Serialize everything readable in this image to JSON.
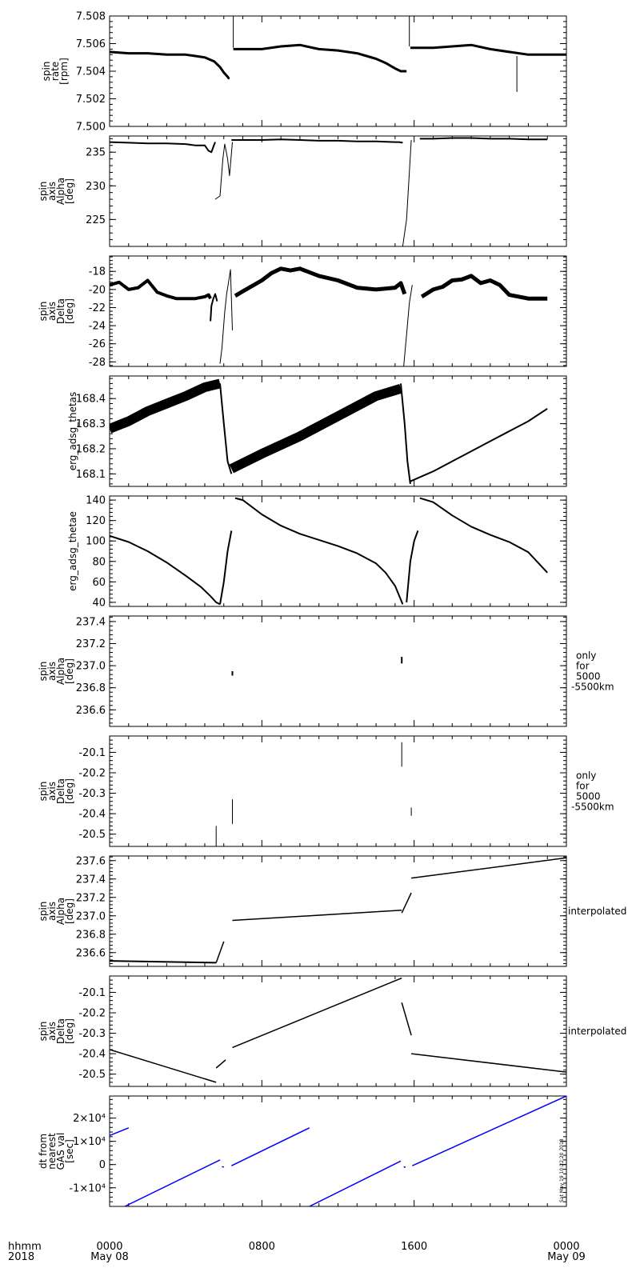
{
  "chart_data": [
    {
      "type": "scatter",
      "ylabel": [
        "spin",
        "rate",
        "[rpm]"
      ],
      "ylim": [
        7.5,
        7.508
      ],
      "yticks": [
        "7.500",
        "7.502",
        "7.504",
        "7.506",
        "7.508"
      ],
      "ytick_values": [
        7.5,
        7.502,
        7.504,
        7.506,
        7.508
      ],
      "series": [
        {
          "x": [
            0,
            1,
            2,
            3,
            4,
            4.5,
            5,
            5.5,
            5.8,
            6.0,
            6.2,
            6.25,
            6.3
          ],
          "y": [
            7.5054,
            7.5053,
            7.5053,
            7.5052,
            7.5052,
            7.5051,
            7.505,
            7.5047,
            7.5043,
            7.5039,
            7.5036,
            7.5035,
            7.5035
          ],
          "width": 3
        },
        {
          "x": [
            6.5,
            6.5
          ],
          "y": [
            7.5057,
            7.5081
          ],
          "width": 1
        },
        {
          "x": [
            6.5,
            8,
            9,
            10,
            11,
            12,
            13,
            13.5,
            14,
            14.5,
            15,
            15.3,
            15.6
          ],
          "y": [
            7.5056,
            7.5056,
            7.5058,
            7.5059,
            7.5056,
            7.5055,
            7.5053,
            7.5051,
            7.5049,
            7.5046,
            7.5042,
            7.504,
            7.504
          ],
          "width": 3
        },
        {
          "x": [
            15.75,
            15.75
          ],
          "y": [
            7.5058,
            7.5081
          ],
          "width": 1
        },
        {
          "x": [
            15.8,
            17,
            18,
            19,
            20,
            21,
            22,
            23,
            24
          ],
          "y": [
            7.5057,
            7.5057,
            7.5058,
            7.5059,
            7.5056,
            7.5054,
            7.5052,
            7.5052,
            7.5052
          ],
          "width": 3
        },
        {
          "x": [
            21.4,
            21.4
          ],
          "y": [
            7.5025,
            7.5051
          ],
          "width": 1
        }
      ]
    },
    {
      "type": "scatter",
      "ylabel": [
        "spin",
        "axis",
        "Alpha",
        "[deg]"
      ],
      "ylim": [
        221,
        237.4
      ],
      "yticks": [
        "225",
        "230",
        "235"
      ],
      "ytick_values": [
        225,
        230,
        235
      ],
      "series": [
        {
          "x": [
            0,
            1,
            2,
            3,
            4,
            4.5,
            5,
            5.2,
            5.35,
            5.45,
            5.55
          ],
          "y": [
            236.5,
            236.4,
            236.3,
            236.3,
            236.2,
            236.0,
            236.0,
            235.2,
            235.0,
            235.8,
            236.5
          ],
          "width": 2
        },
        {
          "x": [
            5.55,
            5.8,
            5.95,
            6.05,
            6.1,
            6.2,
            6.3,
            6.45
          ],
          "y": [
            228,
            228.5,
            234,
            236.2,
            235.5,
            234,
            231.5,
            236.5
          ],
          "width": 1
        },
        {
          "x": [
            6.4,
            8,
            9,
            10,
            11,
            12,
            13,
            14,
            15,
            15.2,
            15.4
          ],
          "y": [
            236.8,
            236.8,
            236.9,
            236.8,
            236.7,
            236.7,
            236.6,
            236.6,
            236.5,
            236.5,
            236.4
          ],
          "width": 2
        },
        {
          "x": [
            15.4,
            15.6,
            15.75,
            15.85
          ],
          "y": [
            221,
            225,
            232,
            236.8
          ],
          "width": 1
        },
        {
          "x": [
            16.3,
            17,
            18,
            19,
            20,
            21,
            22,
            23
          ],
          "y": [
            237.0,
            237.0,
            237.1,
            237.1,
            237.0,
            237.0,
            236.9,
            236.9
          ],
          "width": 2
        }
      ]
    },
    {
      "type": "scatter",
      "ylabel": [
        "spin",
        "axis",
        "Delta",
        "[deg]"
      ],
      "ylim": [
        -28.5,
        -16.3
      ],
      "yticks": [
        "-28",
        "-26",
        "-24",
        "-22",
        "-20",
        "-18"
      ],
      "ytick_values": [
        -28,
        -26,
        -24,
        -22,
        -20,
        -18
      ],
      "series": [
        {
          "x": [
            0,
            0.5,
            1,
            1.5,
            2,
            2.5,
            3,
            3.5,
            4,
            4.5,
            5,
            5.2,
            5.3
          ],
          "y": [
            -19.5,
            -19.2,
            -20.0,
            -19.8,
            -19.0,
            -20.3,
            -20.7,
            -21.0,
            -21.0,
            -21.0,
            -20.8,
            -20.6,
            -21.0
          ],
          "width": 4
        },
        {
          "x": [
            5.3,
            5.35,
            5.45,
            5.55,
            5.65
          ],
          "y": [
            -23.5,
            -21.8,
            -21.0,
            -20.5,
            -21.3
          ],
          "width": 2
        },
        {
          "x": [
            5.8,
            5.9,
            6.05,
            6.15,
            6.3,
            6.35,
            6.45
          ],
          "y": [
            -28.2,
            -26.5,
            -22.5,
            -20.5,
            -18.5,
            -17.8,
            -24.5
          ],
          "width": 1
        },
        {
          "x": [
            6.6,
            7,
            8,
            8.5,
            9,
            9.5,
            10,
            11,
            12,
            13,
            14,
            15,
            15.3,
            15.5
          ],
          "y": [
            -20.7,
            -20.2,
            -19.0,
            -18.2,
            -17.7,
            -17.9,
            -17.7,
            -18.5,
            -19.0,
            -19.8,
            -20.0,
            -19.8,
            -19.3,
            -20.5
          ],
          "width": 5
        },
        {
          "x": [
            15.45,
            15.6,
            15.75,
            15.9
          ],
          "y": [
            -28.5,
            -25.0,
            -21.5,
            -19.5
          ],
          "width": 1
        },
        {
          "x": [
            16.4,
            17,
            17.5,
            18,
            18.5,
            19,
            19.5,
            20,
            20.5,
            21,
            22,
            23
          ],
          "y": [
            -20.8,
            -20.0,
            -19.7,
            -19.0,
            -18.9,
            -18.5,
            -19.3,
            -19.0,
            -19.5,
            -20.6,
            -21.0,
            -21.0
          ],
          "width": 5
        }
      ]
    },
    {
      "type": "scatter",
      "ylabel": [
        "erg_adsg_thetas"
      ],
      "ylim": [
        168.05,
        168.49
      ],
      "yticks": [
        "168.1",
        "168.2",
        "168.3",
        "168.4"
      ],
      "ytick_values": [
        168.1,
        168.2,
        168.3,
        168.4
      ],
      "series": [
        {
          "x": [
            0,
            1,
            2,
            3,
            4,
            5,
            5.8
          ],
          "y": [
            168.28,
            168.31,
            168.35,
            168.38,
            168.41,
            168.445,
            168.46
          ],
          "width": 12
        },
        {
          "x": [
            5.8,
            6.0,
            6.2,
            6.4
          ],
          "y": [
            168.46,
            168.3,
            168.15,
            168.1
          ],
          "width": 2
        },
        {
          "x": [
            6.4,
            8,
            10,
            12,
            14,
            15.3
          ],
          "y": [
            168.12,
            168.18,
            168.25,
            168.33,
            168.41,
            168.44
          ],
          "width": 12
        },
        {
          "x": [
            15.3,
            15.5,
            15.65,
            15.8
          ],
          "y": [
            168.46,
            168.3,
            168.15,
            168.06
          ],
          "width": 2
        },
        {
          "x": [
            15.8,
            17,
            18,
            19,
            20,
            21,
            22,
            23
          ],
          "y": [
            168.07,
            168.11,
            168.15,
            168.19,
            168.23,
            168.27,
            168.31,
            168.36
          ],
          "width": 2
        }
      ]
    },
    {
      "type": "line",
      "ylabel": [
        "erg_adsg_thetae"
      ],
      "ylim": [
        36,
        144
      ],
      "yticks": [
        "40",
        "60",
        "80",
        "100",
        "120",
        "140"
      ],
      "ytick_values": [
        40,
        60,
        80,
        100,
        120,
        140
      ],
      "series": [
        {
          "x": [
            0,
            1,
            2,
            3,
            4,
            4.8,
            5.3,
            5.6,
            5.8
          ],
          "y": [
            105,
            99,
            90,
            79,
            66,
            55,
            46,
            40,
            38
          ],
          "width": 2
        },
        {
          "x": [
            5.8,
            6.0,
            6.2,
            6.4
          ],
          "y": [
            38,
            60,
            90,
            110
          ],
          "width": 2
        },
        {
          "x": [
            6.6,
            7,
            8,
            9,
            10,
            11,
            12,
            13,
            14,
            14.5,
            15,
            15.4
          ],
          "y": [
            142,
            140,
            126,
            115,
            107,
            101,
            95,
            88,
            78,
            69,
            56,
            38
          ],
          "width": 2
        },
        {
          "x": [
            15.6,
            15.8,
            16.0,
            16.2
          ],
          "y": [
            40,
            80,
            100,
            110
          ],
          "width": 2
        },
        {
          "x": [
            16.3,
            17,
            18,
            19,
            20,
            21,
            22,
            23
          ],
          "y": [
            142,
            138,
            125,
            114,
            106,
            99,
            89,
            69
          ],
          "width": 2
        }
      ]
    },
    {
      "type": "scatter",
      "ylabel": [
        "spin",
        "axis",
        "Alpha",
        "[deg]"
      ],
      "ylim": [
        236.45,
        237.45
      ],
      "yticks": [
        "236.6",
        "236.8",
        "237.0",
        "237.2",
        "237.4"
      ],
      "ytick_values": [
        236.6,
        236.8,
        237.0,
        237.2,
        237.4
      ],
      "side_label": [
        "only",
        "for",
        "5000",
        "-5500km"
      ],
      "series": [
        {
          "x": [
            6.45,
            6.45
          ],
          "y": [
            236.91,
            236.95
          ],
          "width": 2
        },
        {
          "x": [
            15.35,
            15.35
          ],
          "y": [
            237.02,
            237.08
          ],
          "width": 2
        }
      ]
    },
    {
      "type": "scatter",
      "ylabel": [
        "spin",
        "axis",
        "Delta",
        "[deg]"
      ],
      "ylim": [
        -20.56,
        -20.02
      ],
      "yticks": [
        "-20.5",
        "-20.4",
        "-20.3",
        "-20.2",
        "-20.1"
      ],
      "ytick_values": [
        -20.5,
        -20.4,
        -20.3,
        -20.2,
        -20.1
      ],
      "side_label": [
        "only",
        "for",
        "5000",
        "-5500km"
      ],
      "series": [
        {
          "x": [
            5.6,
            5.6
          ],
          "y": [
            -20.56,
            -20.46
          ],
          "width": 1
        },
        {
          "x": [
            6.45,
            6.45
          ],
          "y": [
            -20.45,
            -20.33
          ],
          "width": 1
        },
        {
          "x": [
            15.35,
            15.35
          ],
          "y": [
            -20.17,
            -20.05
          ],
          "width": 1
        },
        {
          "x": [
            15.85,
            15.85
          ],
          "y": [
            -20.41,
            -20.37
          ],
          "width": 1
        }
      ]
    },
    {
      "type": "line",
      "ylabel": [
        "spin",
        "axis",
        "Alpha",
        "[deg]"
      ],
      "ylim": [
        236.45,
        237.65
      ],
      "yticks": [
        "236.6",
        "236.8",
        "237.0",
        "237.2",
        "237.4",
        "237.6"
      ],
      "ytick_values": [
        236.6,
        236.8,
        237.0,
        237.2,
        237.4,
        237.6
      ],
      "side_label": [
        "interpolated"
      ],
      "series": [
        {
          "x": [
            0,
            5.6
          ],
          "y": [
            236.51,
            236.49
          ],
          "width": 2
        },
        {
          "x": [
            5.6,
            6.0
          ],
          "y": [
            236.49,
            236.72
          ],
          "width": 1.5
        },
        {
          "x": [
            6.45,
            15.35
          ],
          "y": [
            236.95,
            237.06
          ],
          "width": 1.5
        },
        {
          "x": [
            15.35,
            15.85
          ],
          "y": [
            237.03,
            237.25
          ],
          "width": 1.5
        },
        {
          "x": [
            15.85,
            24
          ],
          "y": [
            237.41,
            237.63
          ],
          "width": 1.5
        }
      ]
    },
    {
      "type": "line",
      "ylabel": [
        "spin",
        "axis",
        "Delta",
        "[deg]"
      ],
      "ylim": [
        -20.56,
        -20.02
      ],
      "yticks": [
        "-20.5",
        "-20.4",
        "-20.3",
        "-20.2",
        "-20.1"
      ],
      "ytick_values": [
        -20.5,
        -20.4,
        -20.3,
        -20.2,
        -20.1
      ],
      "side_label": [
        "interpolated"
      ],
      "series": [
        {
          "x": [
            0,
            5.6
          ],
          "y": [
            -20.38,
            -20.54
          ],
          "width": 1.5
        },
        {
          "x": [
            5.6,
            6.1
          ],
          "y": [
            -20.47,
            -20.43
          ],
          "width": 1.5
        },
        {
          "x": [
            6.45,
            15.35
          ],
          "y": [
            -20.37,
            -20.03
          ],
          "width": 1.5
        },
        {
          "x": [
            15.35,
            15.85
          ],
          "y": [
            -20.15,
            -20.31
          ],
          "width": 1.5
        },
        {
          "x": [
            15.85,
            24
          ],
          "y": [
            -20.4,
            -20.49
          ],
          "width": 1.5
        }
      ]
    },
    {
      "type": "line",
      "ylabel": [
        "dt from",
        "nearest",
        "GAS val",
        "[sec]"
      ],
      "ylim": [
        -18000,
        29500
      ],
      "yticks": [
        "-1×10⁴",
        "0",
        "1×10⁴",
        "2×10⁴"
      ],
      "ytick_values": [
        -10000,
        0,
        10000,
        20000
      ],
      "color": "#0000ff",
      "series": [
        {
          "x": [
            0,
            1.0
          ],
          "y": [
            12500,
            15800
          ],
          "width": 1.5
        },
        {
          "x": [
            0.8,
            5.8
          ],
          "y": [
            -18000,
            2000
          ],
          "width": 1.5
        },
        {
          "x": [
            5.9,
            6.0
          ],
          "y": [
            -900,
            -1100
          ],
          "width": 1.5
        },
        {
          "x": [
            6.4,
            10.5
          ],
          "y": [
            -500,
            15800
          ],
          "width": 1.5
        },
        {
          "x": [
            10.5,
            15.3
          ],
          "y": [
            -18000,
            1500
          ],
          "width": 1.5
        },
        {
          "x": [
            15.45,
            15.55
          ],
          "y": [
            -1000,
            -1100
          ],
          "width": 1.5
        },
        {
          "x": [
            15.9,
            24
          ],
          "y": [
            -500,
            29500
          ],
          "width": 1.5
        }
      ],
      "vertical_note": "Sat May 19 10:22:20 2018"
    }
  ],
  "xaxis": {
    "xlim": [
      0,
      24
    ],
    "tick_values": [
      0,
      8,
      16,
      24
    ],
    "row_title": "hhmm",
    "year": "2018",
    "tick_labels": [
      "0000",
      "0800",
      "1600",
      "0000"
    ],
    "date_labels": [
      "May 08",
      "",
      "",
      "May 09"
    ]
  }
}
